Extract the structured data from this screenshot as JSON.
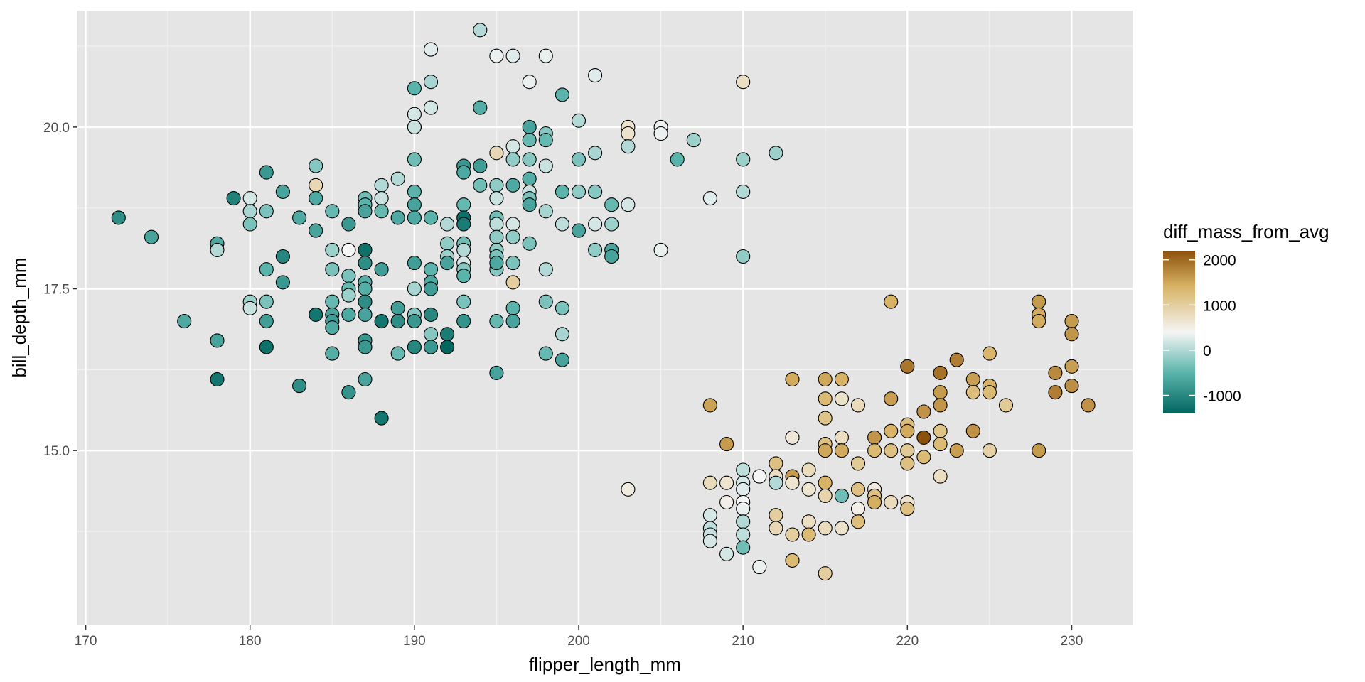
{
  "chart_data": {
    "type": "scatter",
    "title": "",
    "xlabel": "flipper_length_mm",
    "ylabel": "bill_depth_mm",
    "xlim": [
      169.5,
      233.7
    ],
    "ylim": [
      12.3,
      21.8
    ],
    "x_ticks": [
      170,
      180,
      190,
      200,
      210,
      220,
      230
    ],
    "y_ticks": [
      15.0,
      17.5,
      20.0
    ],
    "x_tick_labels": [
      "170",
      "180",
      "190",
      "200",
      "210",
      "220",
      "230"
    ],
    "y_tick_labels": [
      "15.0",
      "17.5",
      "20.0"
    ],
    "grid": true,
    "background": "#e5e5e5",
    "legend": {
      "title": "diff_mass_from_avg",
      "position": "right",
      "min": -1400,
      "max": 2200,
      "breaks": [
        2000,
        1000,
        0,
        -1000
      ],
      "labels": [
        "2000",
        "1000",
        "0",
        "-1000"
      ],
      "colors": {
        "low": "#01665e",
        "mid_low": "#5ab4ac",
        "mid": "#f5f5f5",
        "mid_high": "#d8b365",
        "high": "#8c510a"
      }
    },
    "series_color_field": "diff_mass_from_avg",
    "points": [
      [
        172,
        18.6,
        -1050
      ],
      [
        174,
        18.3,
        -850
      ],
      [
        176,
        17.0,
        -800
      ],
      [
        178,
        18.2,
        -800
      ],
      [
        178,
        18.1,
        -300
      ],
      [
        178,
        16.7,
        -850
      ],
      [
        178,
        16.1,
        -1250
      ],
      [
        179,
        18.9,
        -1150
      ],
      [
        180,
        18.9,
        -150
      ],
      [
        180,
        18.7,
        -350
      ],
      [
        180,
        18.5,
        -550
      ],
      [
        180,
        17.3,
        -400
      ],
      [
        180,
        17.2,
        -200
      ],
      [
        181,
        19.3,
        -950
      ],
      [
        181,
        18.7,
        -550
      ],
      [
        181,
        17.8,
        -700
      ],
      [
        181,
        17.3,
        -550
      ],
      [
        181,
        17.0,
        -900
      ],
      [
        181,
        16.6,
        -1300
      ],
      [
        182,
        19.0,
        -850
      ],
      [
        182,
        18.0,
        -1100
      ],
      [
        182,
        17.6,
        -950
      ],
      [
        183,
        18.6,
        -800
      ],
      [
        183,
        16.0,
        -1050
      ],
      [
        184,
        19.4,
        -500
      ],
      [
        184,
        19.1,
        450
      ],
      [
        184,
        18.9,
        -800
      ],
      [
        184,
        18.4,
        -850
      ],
      [
        184,
        17.1,
        -1250
      ],
      [
        185,
        18.7,
        -650
      ],
      [
        185,
        18.1,
        -400
      ],
      [
        185,
        17.8,
        -550
      ],
      [
        185,
        17.3,
        -650
      ],
      [
        185,
        17.1,
        -850
      ],
      [
        185,
        17.0,
        -900
      ],
      [
        185,
        16.9,
        -800
      ],
      [
        185,
        16.5,
        -750
      ],
      [
        186,
        18.5,
        -950
      ],
      [
        186,
        18.1,
        0
      ],
      [
        186,
        17.7,
        -550
      ],
      [
        186,
        17.5,
        -650
      ],
      [
        186,
        17.4,
        -400
      ],
      [
        186,
        17.1,
        -800
      ],
      [
        186,
        15.9,
        -1000
      ],
      [
        187,
        18.9,
        -600
      ],
      [
        187,
        18.8,
        -700
      ],
      [
        187,
        18.7,
        -850
      ],
      [
        187,
        18.1,
        -1300
      ],
      [
        187,
        17.9,
        -1050
      ],
      [
        187,
        17.6,
        -750
      ],
      [
        187,
        17.5,
        -750
      ],
      [
        187,
        17.3,
        -1050
      ],
      [
        187,
        17.1,
        -850
      ],
      [
        187,
        16.7,
        -950
      ],
      [
        187,
        16.6,
        -950
      ],
      [
        187,
        16.1,
        -850
      ],
      [
        188,
        19.1,
        -300
      ],
      [
        188,
        18.9,
        -200
      ],
      [
        188,
        18.7,
        -650
      ],
      [
        188,
        17.8,
        -900
      ],
      [
        188,
        17.0,
        -1250
      ],
      [
        188,
        15.5,
        -1250
      ],
      [
        189,
        19.2,
        -300
      ],
      [
        189,
        18.6,
        -800
      ],
      [
        189,
        17.2,
        -900
      ],
      [
        189,
        17.0,
        -1050
      ],
      [
        189,
        16.5,
        -650
      ],
      [
        190,
        20.2,
        -150
      ],
      [
        190,
        20.0,
        -150
      ],
      [
        190,
        20.0,
        -200
      ],
      [
        190,
        19.5,
        -600
      ],
      [
        190,
        19.0,
        -700
      ],
      [
        190,
        18.8,
        -850
      ],
      [
        190,
        18.6,
        -800
      ],
      [
        190,
        17.9,
        -900
      ],
      [
        190,
        17.5,
        -350
      ],
      [
        190,
        17.1,
        -500
      ],
      [
        190,
        17.0,
        -950
      ],
      [
        190,
        16.6,
        -1100
      ],
      [
        190,
        20.6,
        -700
      ],
      [
        191,
        21.2,
        -100
      ],
      [
        191,
        20.7,
        -350
      ],
      [
        191,
        20.3,
        -150
      ],
      [
        191,
        18.6,
        -700
      ],
      [
        191,
        17.8,
        -700
      ],
      [
        191,
        17.6,
        -800
      ],
      [
        191,
        17.5,
        -900
      ],
      [
        191,
        17.1,
        -1100
      ],
      [
        191,
        16.8,
        -500
      ],
      [
        191,
        16.6,
        -950
      ],
      [
        192,
        18.5,
        -300
      ],
      [
        192,
        18.2,
        -450
      ],
      [
        192,
        18.0,
        -400
      ],
      [
        192,
        17.9,
        -850
      ],
      [
        192,
        16.8,
        -1200
      ],
      [
        192,
        16.6,
        -1400
      ],
      [
        193,
        19.4,
        -950
      ],
      [
        193,
        19.3,
        -800
      ],
      [
        193,
        18.8,
        -650
      ],
      [
        193,
        18.6,
        -1300
      ],
      [
        193,
        18.5,
        -1200
      ],
      [
        193,
        18.2,
        -600
      ],
      [
        193,
        18.1,
        -300
      ],
      [
        193,
        17.9,
        -150
      ],
      [
        193,
        17.8,
        -500
      ],
      [
        193,
        17.7,
        -700
      ],
      [
        193,
        17.3,
        -550
      ],
      [
        193,
        17.0,
        -1000
      ],
      [
        194,
        21.5,
        -300
      ],
      [
        194,
        20.3,
        -750
      ],
      [
        194,
        19.4,
        -900
      ],
      [
        194,
        19.1,
        -600
      ],
      [
        195,
        21.1,
        -50
      ],
      [
        195,
        19.6,
        450
      ],
      [
        195,
        19.1,
        -450
      ],
      [
        195,
        18.9,
        -200
      ],
      [
        195,
        18.6,
        -600
      ],
      [
        195,
        18.5,
        -250
      ],
      [
        195,
        18.3,
        -450
      ],
      [
        195,
        18.1,
        -450
      ],
      [
        195,
        17.8,
        -500
      ],
      [
        195,
        18.0,
        -550
      ],
      [
        195,
        17.9,
        -800
      ],
      [
        195,
        17.0,
        -650
      ],
      [
        195,
        16.2,
        -850
      ],
      [
        196,
        21.1,
        -100
      ],
      [
        196,
        19.7,
        -150
      ],
      [
        196,
        19.5,
        -450
      ],
      [
        196,
        19.1,
        -800
      ],
      [
        196,
        18.5,
        -150
      ],
      [
        196,
        18.3,
        -450
      ],
      [
        196,
        17.9,
        -550
      ],
      [
        196,
        17.6,
        600
      ],
      [
        196,
        17.2,
        -700
      ],
      [
        196,
        17.0,
        -850
      ],
      [
        197,
        20.7,
        -50
      ],
      [
        197,
        20.0,
        -850
      ],
      [
        197,
        19.8,
        -650
      ],
      [
        197,
        19.5,
        -500
      ],
      [
        197,
        19.2,
        -750
      ],
      [
        197,
        19.0,
        -200
      ],
      [
        197,
        18.9,
        -550
      ],
      [
        197,
        18.8,
        -850
      ],
      [
        197,
        18.2,
        -550
      ],
      [
        198,
        21.1,
        -50
      ],
      [
        198,
        19.9,
        -500
      ],
      [
        198,
        19.8,
        -650
      ],
      [
        198,
        19.4,
        -200
      ],
      [
        198,
        18.7,
        -350
      ],
      [
        198,
        17.8,
        -300
      ],
      [
        198,
        17.3,
        -550
      ],
      [
        198,
        16.5,
        -650
      ],
      [
        199,
        20.5,
        -700
      ],
      [
        199,
        19.0,
        -700
      ],
      [
        199,
        18.5,
        -250
      ],
      [
        199,
        17.2,
        -550
      ],
      [
        199,
        16.8,
        -350
      ],
      [
        199,
        16.4,
        -850
      ],
      [
        200,
        20.1,
        -300
      ],
      [
        200,
        19.5,
        -550
      ],
      [
        200,
        19.0,
        -450
      ],
      [
        200,
        18.4,
        -850
      ],
      [
        201,
        20.8,
        -100
      ],
      [
        201,
        19.6,
        -350
      ],
      [
        201,
        19.0,
        -500
      ],
      [
        201,
        18.5,
        -150
      ],
      [
        201,
        18.1,
        -450
      ],
      [
        202,
        18.5,
        -400
      ],
      [
        202,
        18.1,
        -850
      ],
      [
        202,
        18.0,
        -850
      ],
      [
        202,
        18.8,
        -650
      ],
      [
        203,
        20.0,
        300
      ],
      [
        203,
        19.9,
        300
      ],
      [
        203,
        19.7,
        -300
      ],
      [
        203,
        18.8,
        -150
      ],
      [
        203,
        14.4,
        150
      ],
      [
        205,
        20.0,
        -50
      ],
      [
        205,
        19.9,
        -50
      ],
      [
        205,
        18.1,
        -50
      ],
      [
        206,
        19.5,
        -700
      ],
      [
        207,
        19.8,
        -400
      ],
      [
        208,
        18.9,
        -100
      ],
      [
        210,
        20.7,
        350
      ],
      [
        210,
        19.5,
        -400
      ],
      [
        210,
        19.0,
        -300
      ],
      [
        210,
        18.0,
        -450
      ],
      [
        212,
        19.6,
        -400
      ],
      [
        208,
        15.7,
        1200
      ],
      [
        208,
        14.5,
        400
      ],
      [
        208,
        14.0,
        -150
      ],
      [
        208,
        13.8,
        -250
      ],
      [
        208,
        13.7,
        -200
      ],
      [
        208,
        13.6,
        -150
      ],
      [
        209,
        15.1,
        1300
      ],
      [
        209,
        14.5,
        250
      ],
      [
        209,
        14.2,
        100
      ],
      [
        209,
        13.4,
        -150
      ],
      [
        210,
        14.7,
        -250
      ],
      [
        210,
        14.5,
        -150
      ],
      [
        210,
        14.4,
        -100
      ],
      [
        210,
        14.2,
        0
      ],
      [
        210,
        14.1,
        -50
      ],
      [
        210,
        13.9,
        -300
      ],
      [
        210,
        13.7,
        -250
      ],
      [
        210,
        13.5,
        -600
      ],
      [
        211,
        14.6,
        0
      ],
      [
        211,
        13.2,
        -50
      ],
      [
        212,
        14.8,
        800
      ],
      [
        212,
        14.6,
        350
      ],
      [
        212,
        14.5,
        -300
      ],
      [
        212,
        14.0,
        600
      ],
      [
        212,
        13.8,
        450
      ],
      [
        213,
        16.1,
        1100
      ],
      [
        213,
        15.2,
        200
      ],
      [
        213,
        14.6,
        1300
      ],
      [
        213,
        14.5,
        250
      ],
      [
        213,
        13.7,
        600
      ],
      [
        213,
        13.3,
        900
      ],
      [
        214,
        14.7,
        400
      ],
      [
        214,
        14.4,
        250
      ],
      [
        214,
        13.9,
        350
      ],
      [
        214,
        13.7,
        900
      ],
      [
        215,
        16.1,
        1150
      ],
      [
        215,
        15.8,
        900
      ],
      [
        215,
        15.5,
        750
      ],
      [
        215,
        15.1,
        800
      ],
      [
        215,
        15.0,
        1150
      ],
      [
        215,
        14.5,
        1000
      ],
      [
        215,
        14.3,
        500
      ],
      [
        215,
        13.8,
        400
      ],
      [
        215,
        13.1,
        600
      ],
      [
        216,
        16.1,
        1000
      ],
      [
        216,
        15.8,
        300
      ],
      [
        216,
        15.2,
        350
      ],
      [
        216,
        15.0,
        1100
      ],
      [
        216,
        14.3,
        -600
      ],
      [
        216,
        13.8,
        300
      ],
      [
        217,
        15.7,
        400
      ],
      [
        217,
        14.8,
        650
      ],
      [
        217,
        14.4,
        800
      ],
      [
        217,
        14.1,
        100
      ],
      [
        217,
        13.9,
        850
      ],
      [
        218,
        15.2,
        1350
      ],
      [
        218,
        15.0,
        900
      ],
      [
        218,
        14.4,
        150
      ],
      [
        218,
        14.3,
        800
      ],
      [
        218,
        14.2,
        1050
      ],
      [
        219,
        17.3,
        1000
      ],
      [
        219,
        15.8,
        1250
      ],
      [
        219,
        15.3,
        1000
      ],
      [
        219,
        15.0,
        800
      ],
      [
        219,
        14.2,
        400
      ],
      [
        220,
        16.3,
        1750
      ],
      [
        220,
        15.4,
        850
      ],
      [
        220,
        15.3,
        1100
      ],
      [
        220,
        15.0,
        650
      ],
      [
        220,
        14.8,
        800
      ],
      [
        220,
        14.2,
        300
      ],
      [
        220,
        14.1,
        800
      ],
      [
        221,
        15.6,
        1400
      ],
      [
        221,
        15.2,
        2200
      ],
      [
        221,
        14.9,
        900
      ],
      [
        222,
        16.2,
        1800
      ],
      [
        222,
        15.9,
        1300
      ],
      [
        222,
        15.7,
        1350
      ],
      [
        222,
        15.3,
        750
      ],
      [
        222,
        15.1,
        900
      ],
      [
        222,
        14.6,
        350
      ],
      [
        223,
        16.4,
        1650
      ],
      [
        223,
        15.0,
        1250
      ],
      [
        224,
        16.1,
        1250
      ],
      [
        224,
        15.9,
        850
      ],
      [
        224,
        15.3,
        1400
      ],
      [
        225,
        16.5,
        950
      ],
      [
        225,
        16.0,
        1000
      ],
      [
        225,
        15.9,
        900
      ],
      [
        225,
        15.0,
        550
      ],
      [
        226,
        15.7,
        650
      ],
      [
        228,
        17.3,
        1300
      ],
      [
        228,
        17.1,
        1100
      ],
      [
        228,
        17.0,
        1100
      ],
      [
        228,
        15.0,
        1300
      ],
      [
        229,
        16.2,
        1500
      ],
      [
        229,
        15.9,
        1650
      ],
      [
        230,
        17.0,
        1300
      ],
      [
        230,
        16.8,
        1350
      ],
      [
        230,
        16.3,
        1250
      ],
      [
        230,
        16.0,
        1450
      ],
      [
        231,
        15.7,
        1400
      ]
    ]
  }
}
